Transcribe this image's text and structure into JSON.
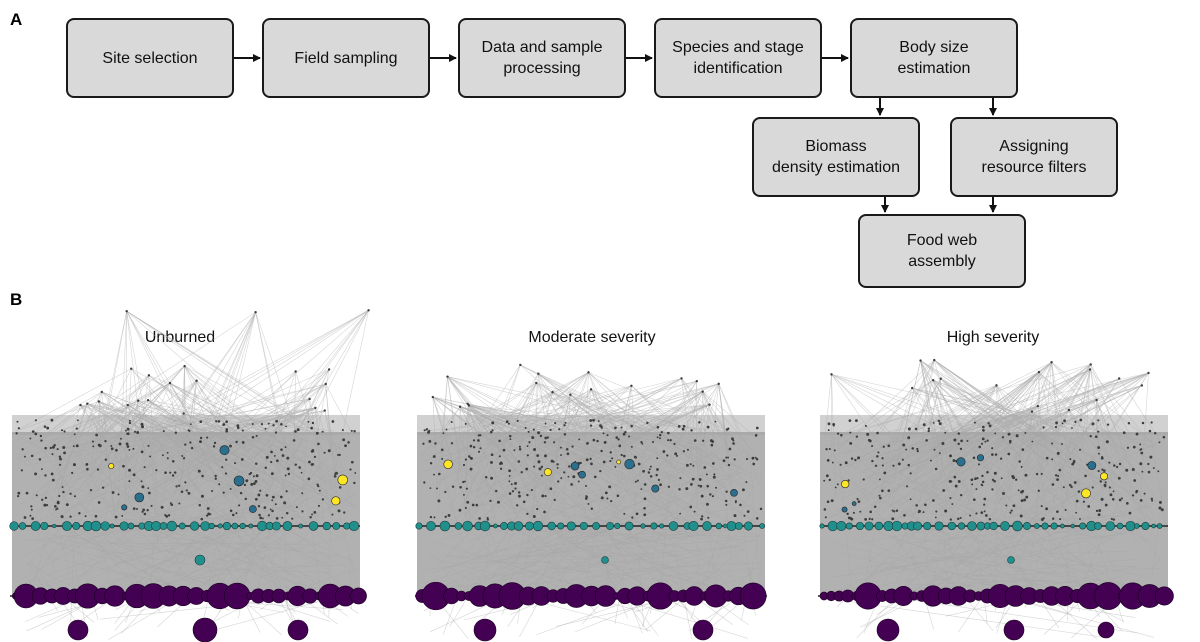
{
  "panel_a": {
    "letter": "A",
    "steps": [
      {
        "id": "site",
        "label": "Site selection"
      },
      {
        "id": "field",
        "label": "Field sampling"
      },
      {
        "id": "data",
        "label": "Data and sample\nprocessing"
      },
      {
        "id": "species",
        "label": "Species and stage\nidentification"
      },
      {
        "id": "body",
        "label": "Body size\nestimation"
      },
      {
        "id": "biomass",
        "label": "Biomass\ndensity estimation"
      },
      {
        "id": "filters",
        "label": "Assigning\nresource filters"
      },
      {
        "id": "foodweb",
        "label": "Food web\nassembly"
      }
    ]
  },
  "panel_b": {
    "letter": "B",
    "webs": [
      {
        "id": "unburned",
        "title": "Unburned"
      },
      {
        "id": "moderate",
        "title": "Moderate severity"
      },
      {
        "id": "high",
        "title": "High severity"
      }
    ],
    "colors": {
      "edge": "#b3b3b3",
      "mass": "#a3a3a3",
      "top_node": "#3a3f3c",
      "teal": "#21908c",
      "dark_teal": "#2b6f8e",
      "purple": "#440154",
      "yellow": "#fde725",
      "green": "#5ec962"
    }
  }
}
